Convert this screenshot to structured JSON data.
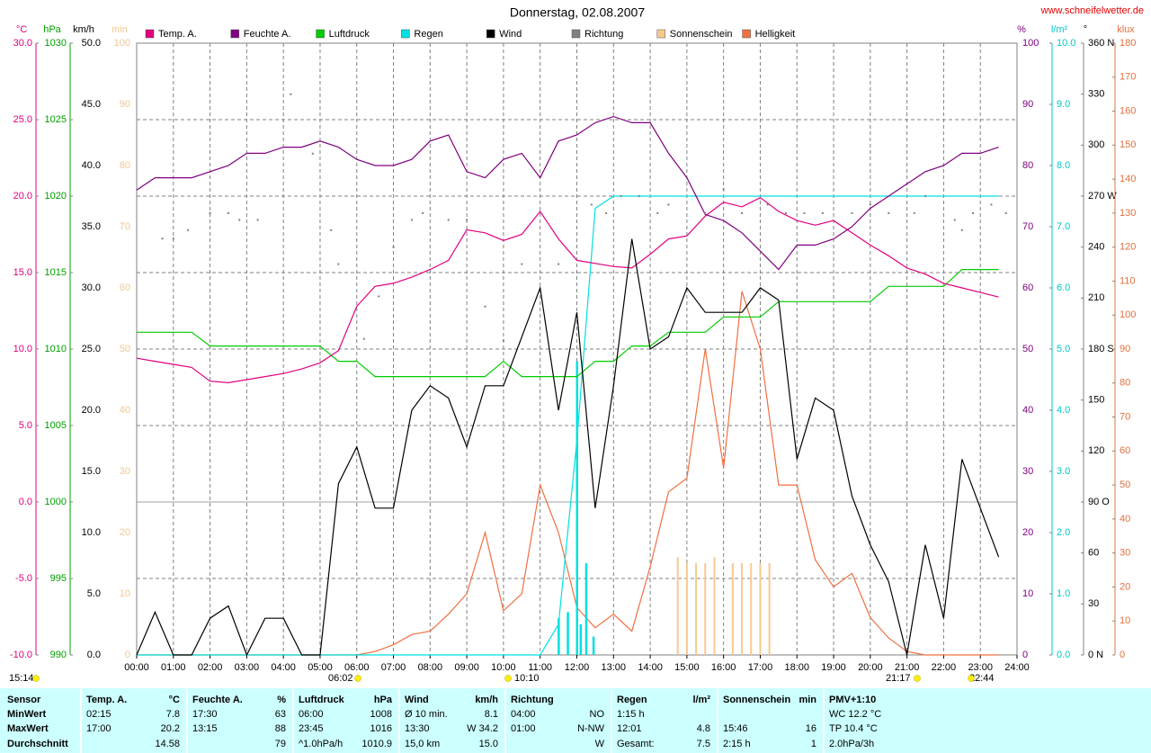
{
  "chart_data": {
    "type": "line",
    "title": "Donnerstag, 02.08.2007",
    "source": "www.schneifelwetter.de",
    "xlim": [
      0,
      24
    ],
    "xticks": [
      {
        "value": 0,
        "label": "00:00"
      },
      {
        "value": 1,
        "label": "01:00"
      },
      {
        "value": 2,
        "label": "02:00"
      },
      {
        "value": 3,
        "label": "03:00"
      },
      {
        "value": 4,
        "label": "04:00"
      },
      {
        "value": 5,
        "label": "05:00"
      },
      {
        "value": 6,
        "label": "06:00"
      },
      {
        "value": 7,
        "label": "07:00"
      },
      {
        "value": 8,
        "label": "08:00"
      },
      {
        "value": 9,
        "label": "09:00"
      },
      {
        "value": 10,
        "label": "10:00"
      },
      {
        "value": 11,
        "label": "11:00"
      },
      {
        "value": 12,
        "label": "12:00"
      },
      {
        "value": 13,
        "label": "13:00"
      },
      {
        "value": 14,
        "label": "14:00"
      },
      {
        "value": 15,
        "label": "15:00"
      },
      {
        "value": 16,
        "label": "16:00"
      },
      {
        "value": 17,
        "label": "17:00"
      },
      {
        "value": 18,
        "label": "18:00"
      },
      {
        "value": 19,
        "label": "19:00"
      },
      {
        "value": 20,
        "label": "20:00"
      },
      {
        "value": 21,
        "label": "21:00"
      },
      {
        "value": 22,
        "label": "22:00"
      },
      {
        "value": 23,
        "label": "23:00"
      },
      {
        "value": 24,
        "label": "24:00"
      }
    ],
    "grid": true,
    "events": [
      "15:14",
      "06:02",
      "10:10",
      "21:17",
      "22:44"
    ],
    "x": [
      0,
      0.5,
      1,
      1.5,
      2,
      2.5,
      3,
      3.5,
      4,
      4.5,
      5,
      5.5,
      6,
      6.5,
      7,
      7.5,
      8,
      8.5,
      9,
      9.5,
      10,
      10.5,
      11,
      11.5,
      12,
      12.5,
      13,
      13.5,
      14,
      14.5,
      15,
      15.5,
      16,
      16.5,
      17,
      17.5,
      18,
      18.5,
      19,
      19.5,
      20,
      20.5,
      21,
      21.5,
      22,
      22.5,
      23,
      23.5
    ],
    "axes": [
      {
        "unit": "°C",
        "color": "#e0007f",
        "lim": [
          -10,
          30
        ],
        "ticks": [
          {
            "value": 30,
            "label": "30.0"
          },
          {
            "value": 25,
            "label": "25.0"
          },
          {
            "value": 20,
            "label": "20.0"
          },
          {
            "value": 15,
            "label": "15.0"
          },
          {
            "value": 10,
            "label": "10.0"
          },
          {
            "value": 5,
            "label": "5.0"
          },
          {
            "value": 0,
            "label": "0.0"
          },
          {
            "value": -5,
            "label": "-5.0"
          },
          {
            "value": -10,
            "label": "-10.0"
          }
        ]
      },
      {
        "unit": "hPa",
        "color": "#00a000",
        "lim": [
          990,
          1030
        ],
        "ticks": [
          1030,
          1025,
          1020,
          1015,
          1010,
          1005,
          1000,
          995,
          990
        ]
      },
      {
        "unit": "km/h",
        "color": "#000000",
        "lim": [
          0,
          50
        ],
        "ticks": [
          {
            "value": 50,
            "label": "50.0"
          },
          {
            "value": 45,
            "label": "45.0"
          },
          {
            "value": 40,
            "label": "40.0"
          },
          {
            "value": 35,
            "label": "35.0"
          },
          {
            "value": 30,
            "label": "30.0"
          },
          {
            "value": 25,
            "label": "25.0"
          },
          {
            "value": 20,
            "label": "20.0"
          },
          {
            "value": 15,
            "label": "15.0"
          },
          {
            "value": 10,
            "label": "10.0"
          },
          {
            "value": 5,
            "label": "5.0"
          },
          {
            "value": 0,
            "label": "0.0"
          }
        ]
      },
      {
        "unit": "min",
        "color": "#f0c890",
        "lim": [
          0,
          100
        ],
        "ticks": [
          100,
          90,
          80,
          70,
          60,
          50,
          40,
          30,
          20,
          10,
          0
        ]
      },
      {
        "unit": "%",
        "color": "#800080",
        "lim": [
          0,
          100
        ],
        "ticks": [
          100,
          90,
          80,
          70,
          60,
          50,
          40,
          30,
          20,
          10,
          0
        ]
      },
      {
        "unit": "l/m²",
        "color": "#00c8c8",
        "lim": [
          0,
          10
        ],
        "ticks": [
          {
            "value": 10,
            "label": "10.0"
          },
          {
            "value": 9,
            "label": "9.0"
          },
          {
            "value": 8,
            "label": "8.0"
          },
          {
            "value": 7,
            "label": "7.0"
          },
          {
            "value": 6,
            "label": "6.0"
          },
          {
            "value": 5,
            "label": "5.0"
          },
          {
            "value": 4,
            "label": "4.0"
          },
          {
            "value": 3,
            "label": "3.0"
          },
          {
            "value": 2,
            "label": "2.0"
          },
          {
            "value": 1,
            "label": "1.0"
          },
          {
            "value": 0,
            "label": "0.0"
          }
        ]
      },
      {
        "unit": "°",
        "color": "#000000",
        "lim": [
          0,
          360
        ],
        "ticks": [
          {
            "value": 360,
            "label": "360 N"
          },
          330,
          300,
          {
            "value": 270,
            "label": "270 W"
          },
          240,
          210,
          {
            "value": 180,
            "label": "180 S"
          },
          150,
          120,
          {
            "value": 90,
            "label": "90 O"
          },
          60,
          30,
          {
            "value": 0,
            "label": "0 N"
          }
        ]
      },
      {
        "unit": "klux",
        "color": "#e07040",
        "lim": [
          0,
          180
        ],
        "ticks": [
          180,
          170,
          160,
          150,
          140,
          130,
          120,
          110,
          100,
          90,
          80,
          70,
          60,
          50,
          40,
          30,
          20,
          10,
          0
        ]
      }
    ],
    "series": [
      {
        "name": "Temp. A.",
        "color": "#e0007f",
        "axis": 0,
        "style": "line",
        "values": [
          9.4,
          9.2,
          9.0,
          8.8,
          7.9,
          7.8,
          8.0,
          8.2,
          8.4,
          8.7,
          9.1,
          9.9,
          12.8,
          14.1,
          14.3,
          14.7,
          15.2,
          15.8,
          17.8,
          17.6,
          17.1,
          17.5,
          19.0,
          17.2,
          15.8,
          15.6,
          15.4,
          15.3,
          16.2,
          17.2,
          17.4,
          18.7,
          19.6,
          19.3,
          19.9,
          19.0,
          18.4,
          18.1,
          18.4,
          17.6,
          16.8,
          16.1,
          15.3,
          14.9,
          14.3,
          14.0,
          13.7,
          13.4
        ]
      },
      {
        "name": "Feuchte A.",
        "color": "#800080",
        "axis": 4,
        "style": "line",
        "values": [
          76,
          78,
          78,
          78,
          79,
          80,
          82,
          82,
          83,
          83,
          84,
          83,
          81,
          80,
          80,
          81,
          84,
          85,
          79,
          78,
          81,
          82,
          78,
          84,
          85,
          87,
          88,
          87,
          87,
          82,
          78,
          72,
          71,
          69,
          66,
          63,
          67,
          67,
          68,
          70,
          73,
          75,
          77,
          79,
          80,
          82,
          82,
          83
        ]
      },
      {
        "name": "Luftdruck",
        "color": "#00cc00",
        "axis": 1,
        "style": "line",
        "values": [
          1011.1,
          1011.1,
          1011.1,
          1011.1,
          1010.2,
          1010.2,
          1010.2,
          1010.2,
          1010.2,
          1010.2,
          1010.2,
          1009.2,
          1009.2,
          1008.2,
          1008.2,
          1008.2,
          1008.2,
          1008.2,
          1008.2,
          1008.2,
          1009.2,
          1008.2,
          1008.2,
          1008.2,
          1008.2,
          1009.2,
          1009.2,
          1010.2,
          1010.2,
          1011.1,
          1011.1,
          1011.1,
          1012.1,
          1012.1,
          1012.1,
          1013.1,
          1013.1,
          1013.1,
          1013.1,
          1013.1,
          1013.1,
          1014.1,
          1014.1,
          1014.1,
          1014.1,
          1015.2,
          1015.2,
          1015.2
        ]
      },
      {
        "name": "Regen",
        "color": "#00e0e0",
        "axis": 5,
        "style": "line",
        "values": [
          0,
          0,
          0,
          0,
          0,
          0,
          0,
          0,
          0,
          0,
          0,
          0,
          0,
          0,
          0,
          0,
          0,
          0,
          0,
          0,
          0,
          0,
          0,
          0.5,
          3.5,
          7.3,
          7.5,
          7.5,
          7.5,
          7.5,
          7.5,
          7.5,
          7.5,
          7.5,
          7.5,
          7.5,
          7.5,
          7.5,
          7.5,
          7.5,
          7.5,
          7.5,
          7.5,
          7.5,
          7.5,
          7.5,
          7.5,
          7.5
        ],
        "bar_x": [
          11.5,
          11.75,
          12.0,
          12.1,
          12.25,
          12.45
        ],
        "bar_values": [
          0.6,
          0.7,
          4.8,
          0.5,
          1.5,
          0.3
        ]
      },
      {
        "name": "Wind",
        "color": "#000000",
        "axis": 2,
        "style": "line",
        "values": [
          0,
          3.5,
          0,
          0,
          3,
          4,
          0,
          3,
          3,
          0,
          0,
          14,
          17,
          12,
          12,
          20,
          22,
          21,
          17,
          22,
          22,
          26,
          30,
          20,
          28,
          12,
          22,
          34,
          25,
          26,
          30,
          28,
          28,
          28,
          30,
          29,
          16,
          21,
          20,
          13,
          9,
          6,
          0,
          9,
          3,
          16,
          12,
          8
        ]
      },
      {
        "name": "Richtung",
        "color": "#808080",
        "axis": 6,
        "style": "dots",
        "x": [
          0.7,
          1.0,
          1.4,
          2.0,
          2.5,
          2.8,
          3.3,
          4.2,
          4.8,
          5.3,
          5.5,
          6.2,
          6.6,
          7.0,
          7.5,
          7.8,
          8.5,
          9.0,
          9.5,
          10.0,
          10.5,
          11.5,
          12.4,
          12.8,
          13.2,
          13.7,
          14.2,
          14.5,
          15.5,
          16.0,
          16.5,
          17.2,
          17.7,
          18.2,
          18.7,
          19.5,
          20.0,
          20.5,
          21.2,
          21.5,
          22.3,
          22.5,
          22.8,
          23.3,
          23.7
        ],
        "values": [
          245,
          245,
          250,
          260,
          260,
          256,
          256,
          330,
          295,
          250,
          230,
          186,
          211,
          240,
          256,
          260,
          256,
          256,
          205,
          185,
          230,
          230,
          265,
          260,
          270,
          270,
          260,
          265,
          260,
          274,
          260,
          265,
          260,
          260,
          260,
          260,
          265,
          260,
          260,
          270,
          256,
          250,
          260,
          265,
          260
        ]
      },
      {
        "name": "Sonnenschein",
        "color": "#f8c890",
        "axis": 3,
        "style": "bars",
        "x": [
          14.75,
          15.0,
          15.25,
          15.5,
          15.75,
          16.25,
          16.5,
          16.75,
          17.0,
          17.25
        ],
        "values": [
          16,
          15,
          15,
          15,
          16,
          15,
          15,
          15,
          15,
          15
        ]
      },
      {
        "name": "Helligkeit",
        "color": "#f07040",
        "axis": 7,
        "style": "line",
        "values": [
          0,
          0,
          0,
          0,
          0,
          0,
          0,
          0,
          0,
          0,
          0,
          0,
          0,
          1,
          3,
          6,
          7,
          12,
          18,
          36,
          13,
          18,
          50,
          36,
          14,
          8,
          12,
          7,
          26,
          48,
          52,
          90,
          55,
          107,
          90,
          50,
          50,
          28,
          20,
          24,
          11,
          5,
          1,
          0,
          0,
          0,
          0,
          0
        ]
      }
    ]
  },
  "table": {
    "row_labels": [
      "Sensor",
      "MinWert",
      "MaxWert",
      "Durchschnitt"
    ],
    "columns": [
      {
        "title": "Temp. A.",
        "unit": "°C",
        "cells": [
          {
            "time": "02:15",
            "value": "7.8"
          },
          {
            "time": "17:00",
            "value": "20.2"
          },
          {
            "value": "14.58"
          }
        ]
      },
      {
        "title": "Feuchte A.",
        "unit": "%",
        "cells": [
          {
            "time": "17:30",
            "value": "63"
          },
          {
            "time": "13:15",
            "value": "88"
          },
          {
            "value": "79"
          }
        ]
      },
      {
        "title": "Luftdruck",
        "unit": "hPa",
        "cells": [
          {
            "time": "06:00",
            "value": "1008"
          },
          {
            "time": "23:45",
            "value": "1016"
          },
          {
            "time": "^1.0hPa/h",
            "value": "1010.9"
          }
        ]
      },
      {
        "title": "Wind",
        "unit": "km/h",
        "cells": [
          {
            "time": "Ø 10 min.",
            "value": "8.1"
          },
          {
            "time": "13:30",
            "value": "W 34.2"
          },
          {
            "time": "15,0 km",
            "value": "15.0"
          }
        ]
      },
      {
        "title": "Richtung",
        "cells": [
          {
            "time": "04:00",
            "value": "NO"
          },
          {
            "time": "01:00",
            "value": "N-NW"
          },
          {
            "value": "W"
          }
        ]
      },
      {
        "title": "Regen",
        "unit": "l/m²",
        "cells": [
          {
            "time": "1:15 h"
          },
          {
            "time": "12:01",
            "value": "4.8"
          },
          {
            "time": "Gesamt:",
            "value": "7.5"
          }
        ]
      },
      {
        "title": "Sonnenschein",
        "unit": "min",
        "cells": [
          null,
          {
            "time": "15:46",
            "value": "16"
          },
          {
            "time": "2:15 h",
            "value": "1"
          }
        ]
      },
      {
        "title": "PMV+1:10",
        "cells": [
          {
            "time": "WC 12.2 °C"
          },
          {
            "time": "TP 10.4 °C"
          },
          {
            "time": "2.0hPa/3h"
          }
        ]
      }
    ]
  }
}
